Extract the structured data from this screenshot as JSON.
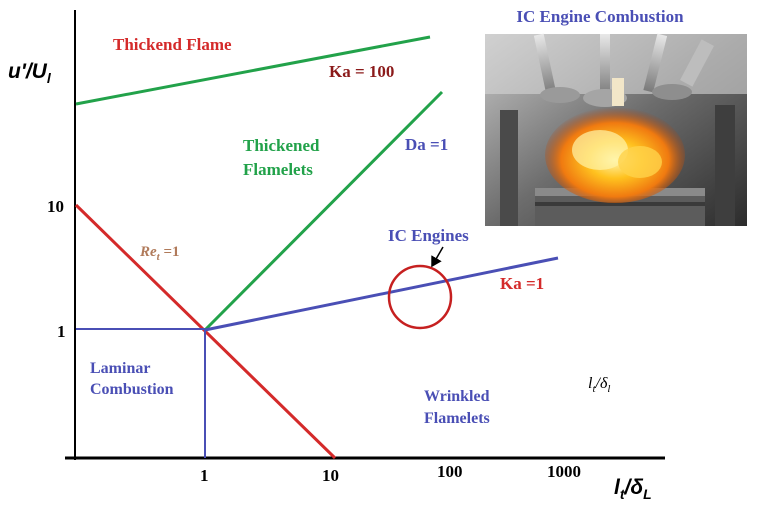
{
  "diagram": {
    "axes": {
      "y_label_main": "u'/U",
      "y_label_sub": "l",
      "x_label_main": "l",
      "x_label_sub": "t",
      "x_label_after": "/δ",
      "x_label_sub2": "L",
      "y_ticks": [
        "10",
        "1"
      ],
      "x_ticks": [
        "1",
        "10",
        "100",
        "1000"
      ]
    },
    "regions": {
      "thickened_flame": "Thickend Flame",
      "thickened_flamelets_1": "Thickened",
      "thickened_flamelets_2": "Flamelets",
      "laminar_1": "Laminar",
      "laminar_2": "Combustion",
      "wrinkled_1": "Wrinkled",
      "wrinkled_2": "Flamelets"
    },
    "lines": {
      "ka100": "Ka = 100",
      "da1": "Da =1",
      "ka1": "Ka =1",
      "re_main": "Re",
      "re_sub": "t",
      "re_suffix": " =1"
    },
    "annotations": {
      "ic_engines": "IC Engines",
      "ratio_main": "l",
      "ratio_sub": "t",
      "ratio_mid": "/δ",
      "ratio_sub2": "l"
    },
    "photo": {
      "title": "IC Engine Combustion"
    },
    "colors": {
      "red": "#d42a2a",
      "green": "#22a24a",
      "blue": "#4a4fb5",
      "dark_red": "#8b1a1a",
      "re_brown": "#b07a5a"
    }
  }
}
